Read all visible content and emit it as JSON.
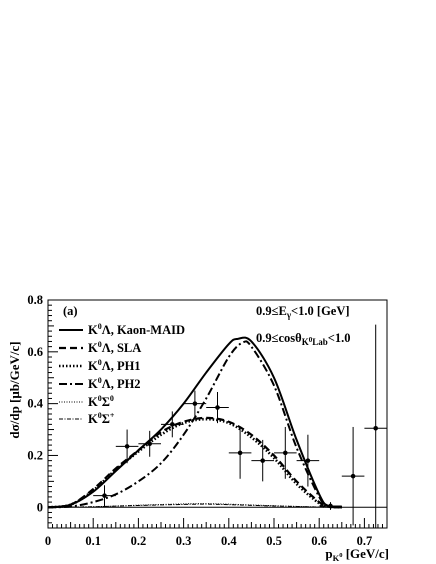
{
  "chart_data": {
    "type": "line",
    "panel_label": "(a)",
    "title": "",
    "xlabel": "p_{K^{0}} [GeV/c]",
    "ylabel": "dσ/dp [μb/GeV/c]",
    "xlim": [
      0,
      0.75
    ],
    "ylim": [
      -0.08,
      0.8
    ],
    "x_ticks": [
      0,
      0.1,
      0.2,
      0.3,
      0.4,
      0.5,
      0.6,
      0.7
    ],
    "x_tick_labels": [
      "0",
      "0.1",
      "0.2",
      "0.3",
      "0.4",
      "0.5",
      "0.6",
      "0.7"
    ],
    "y_ticks": [
      0,
      0.2,
      0.4,
      0.6,
      0.8
    ],
    "y_tick_labels": [
      "0",
      "0.2",
      "0.4",
      "0.6",
      "0.8"
    ],
    "grid": false,
    "legend_position": "top-left",
    "annotations": [
      "0.9≤E_{γ}<1.0 [GeV]",
      "0.9≤cosθ_{K^{0}Lab}<1.0"
    ],
    "series": [
      {
        "name": "K^{0}Λ, Kaon-MAID",
        "style": "solid",
        "x": [
          0,
          0.05,
          0.1,
          0.15,
          0.2,
          0.25,
          0.3,
          0.35,
          0.4,
          0.42,
          0.45,
          0.5,
          0.55,
          0.6,
          0.62,
          0.65
        ],
        "y": [
          0,
          0.01,
          0.06,
          0.14,
          0.22,
          0.3,
          0.4,
          0.52,
          0.63,
          0.65,
          0.64,
          0.5,
          0.26,
          0.05,
          0.005,
          0
        ]
      },
      {
        "name": "K^{0}Λ, SLA",
        "style": "dashed",
        "x": [
          0,
          0.05,
          0.1,
          0.15,
          0.2,
          0.25,
          0.3,
          0.35,
          0.4,
          0.45,
          0.5,
          0.55,
          0.6,
          0.62,
          0.65
        ],
        "y": [
          0,
          0.01,
          0.07,
          0.15,
          0.22,
          0.29,
          0.33,
          0.345,
          0.33,
          0.28,
          0.2,
          0.1,
          0.02,
          0.005,
          0
        ]
      },
      {
        "name": "K^{0}Λ, PH1",
        "style": "dotted",
        "x": [
          0,
          0.05,
          0.1,
          0.15,
          0.2,
          0.25,
          0.3,
          0.35,
          0.4,
          0.45,
          0.5,
          0.55,
          0.6,
          0.62,
          0.65
        ],
        "y": [
          0,
          0.01,
          0.065,
          0.145,
          0.215,
          0.28,
          0.325,
          0.34,
          0.325,
          0.27,
          0.19,
          0.09,
          0.015,
          0.003,
          0
        ]
      },
      {
        "name": "K^{0}Λ, PH2",
        "style": "dashdot",
        "x": [
          0,
          0.05,
          0.1,
          0.15,
          0.2,
          0.25,
          0.3,
          0.35,
          0.4,
          0.43,
          0.45,
          0.5,
          0.55,
          0.6,
          0.62,
          0.65
        ],
        "y": [
          0,
          0.003,
          0.02,
          0.05,
          0.1,
          0.17,
          0.28,
          0.42,
          0.58,
          0.635,
          0.62,
          0.47,
          0.23,
          0.04,
          0.005,
          0
        ]
      },
      {
        "name": "K^{0}Σ^{0}",
        "style": "thin-dotted",
        "x": [
          0,
          0.1,
          0.2,
          0.3,
          0.35,
          0.4,
          0.5,
          0.6,
          0.65
        ],
        "y": [
          0,
          0.002,
          0.008,
          0.013,
          0.014,
          0.012,
          0.006,
          0.001,
          0
        ]
      },
      {
        "name": "K^{0}Σ^{+}",
        "style": "thin-dashdot",
        "x": [
          0,
          0.1,
          0.2,
          0.3,
          0.35,
          0.4,
          0.5,
          0.6,
          0.65
        ],
        "y": [
          0,
          0.002,
          0.007,
          0.011,
          0.012,
          0.01,
          0.005,
          0.001,
          0
        ]
      }
    ],
    "data_points": {
      "x": [
        0.125,
        0.175,
        0.225,
        0.275,
        0.325,
        0.375,
        0.425,
        0.475,
        0.525,
        0.575,
        0.625,
        0.675,
        0.725
      ],
      "y": [
        0.045,
        0.235,
        0.245,
        0.32,
        0.4,
        0.385,
        0.21,
        0.18,
        0.21,
        0.18,
        0.005,
        0.12,
        0.305
      ],
      "x_err": [
        0.025,
        0.025,
        0.025,
        0.025,
        0.025,
        0.025,
        0.025,
        0.025,
        0.025,
        0.025,
        0.025,
        0.025,
        0.025
      ],
      "y_err": [
        0.04,
        0.065,
        0.05,
        0.05,
        0.05,
        0.06,
        0.1,
        0.08,
        0.1,
        0.1,
        0.015,
        0.19,
        0.4
      ]
    }
  }
}
